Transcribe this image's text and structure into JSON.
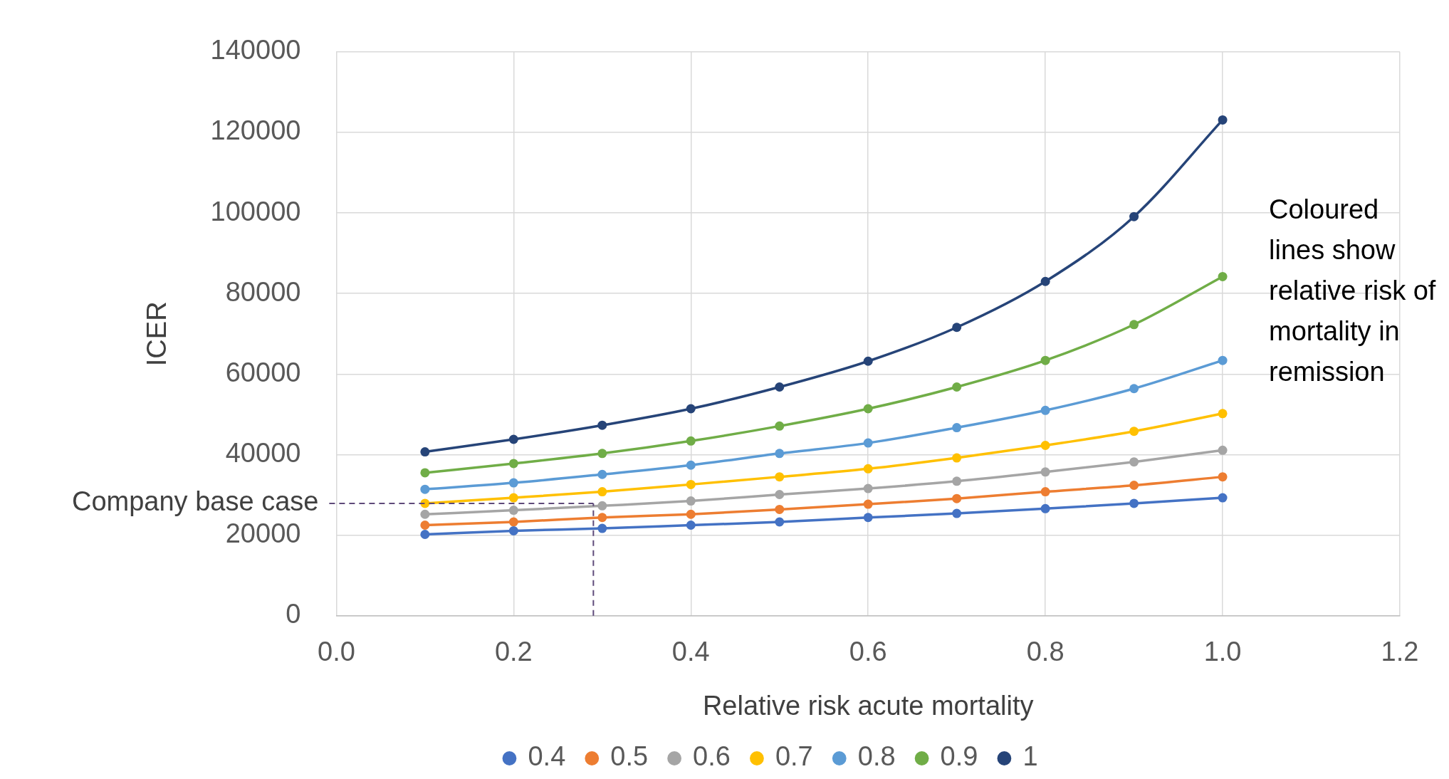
{
  "chart_data": {
    "type": "line",
    "xlabel": "Relative risk acute mortality",
    "ylabel": "ICER",
    "x": [
      0.1,
      0.2,
      0.3,
      0.4,
      0.5,
      0.6,
      0.7,
      0.8,
      0.9,
      1.0
    ],
    "series": [
      {
        "name": "0.4",
        "color": "#4472c4",
        "values": [
          20200,
          21100,
          21700,
          22500,
          23300,
          24400,
          25400,
          26600,
          27900,
          29300
        ]
      },
      {
        "name": "0.5",
        "color": "#ed7d31",
        "values": [
          22500,
          23300,
          24400,
          25200,
          26400,
          27700,
          29100,
          30800,
          32400,
          34500
        ]
      },
      {
        "name": "0.6",
        "color": "#a5a5a5",
        "values": [
          25200,
          26200,
          27300,
          28500,
          30100,
          31600,
          33400,
          35700,
          38200,
          41100
        ]
      },
      {
        "name": "0.7",
        "color": "#ffc000",
        "values": [
          27900,
          29300,
          30800,
          32600,
          34500,
          36500,
          39200,
          42300,
          45800,
          50200
        ]
      },
      {
        "name": "0.8",
        "color": "#5b9bd5",
        "values": [
          31400,
          33000,
          35100,
          37400,
          40300,
          42900,
          46700,
          51000,
          56400,
          63400
        ]
      },
      {
        "name": "0.9",
        "color": "#70ad47",
        "values": [
          35500,
          37800,
          40300,
          43400,
          47100,
          51400,
          56800,
          63400,
          72300,
          84200
        ]
      },
      {
        "name": "1",
        "color": "#264478",
        "values": [
          40700,
          43800,
          47300,
          51400,
          56800,
          63200,
          71600,
          83000,
          99100,
          123100
        ]
      }
    ],
    "xlim": [
      0,
      1.2
    ],
    "xticks": [
      {
        "value": 0,
        "label": "0.0"
      },
      0.2,
      0.4,
      0.6,
      0.8,
      {
        "value": 1,
        "label": "1.0"
      },
      1.2
    ],
    "ylim": [
      0,
      140000
    ],
    "yticks": [
      0,
      20000,
      40000,
      60000,
      80000,
      100000,
      120000,
      140000
    ],
    "ref_lines": [
      {
        "axis": "y",
        "value": 27900,
        "label": "Company base case",
        "color": "#5e4a7a",
        "line_style": "dashed"
      },
      {
        "axis": "x",
        "value": 0.29,
        "color": "#5e4a7a",
        "line_style": "dashed"
      }
    ],
    "annotations": [
      "Coloured lines show relative risk of mortality in remission"
    ],
    "grid": true,
    "legend": "bottom",
    "marker": "circle",
    "line_style": "solid"
  }
}
